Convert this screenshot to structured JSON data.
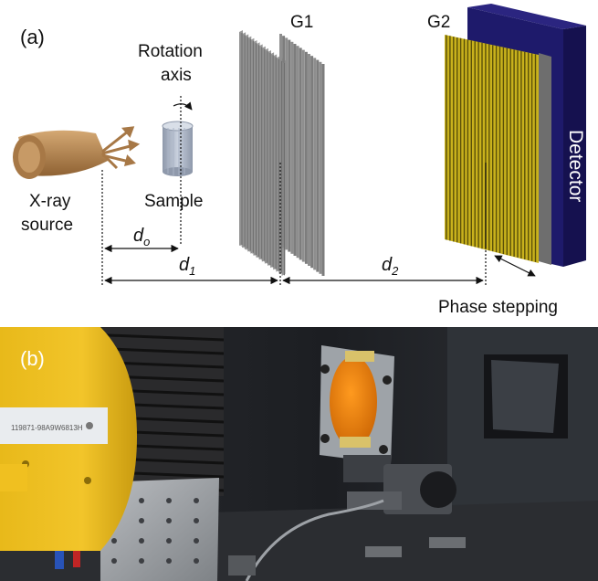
{
  "panel_a": {
    "label": "(a)",
    "rotation_axis_line1": "Rotation",
    "rotation_axis_line2": "axis",
    "xray_line1": "X-ray",
    "xray_line2": "source",
    "sample": "Sample",
    "g1": "G1",
    "g2": "G2",
    "detector": "Detector",
    "d_o_main": "d",
    "d_o_sub": "o",
    "d_1_main": "d",
    "d_1_sub": "1",
    "d_2_main": "d",
    "d_2_sub": "2",
    "phase_stepping": "Phase stepping"
  },
  "panel_b": {
    "label": "(b)",
    "serial_text": "119871-98A9W6813H"
  },
  "colors": {
    "source": "#b0804a",
    "sample": "#a9b4c6",
    "grating_g1": "#8c8c8c",
    "grating_g2_gold": "#c9b21c",
    "detector": "#1e1a6b"
  }
}
